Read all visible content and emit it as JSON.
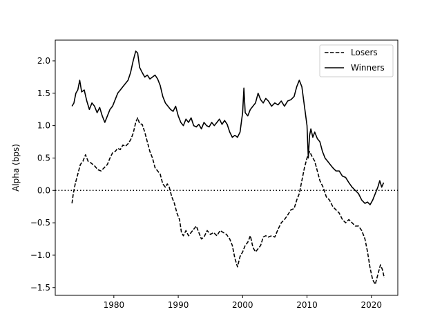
{
  "chart_data": {
    "type": "line",
    "title": "",
    "xlabel": "",
    "ylabel": "Alpha (bps)",
    "xlim": [
      1970.9,
      2024.1
    ],
    "ylim": [
      -1.62,
      2.32
    ],
    "xticks": [
      1980,
      1990,
      2000,
      2010,
      2020
    ],
    "yticks": [
      2.0,
      1.5,
      1.0,
      0.5,
      0.0,
      -0.5,
      -1.0,
      -1.5
    ],
    "ytick_labels": [
      "2.0",
      "1.5",
      "1.0",
      "0.5",
      "0.0",
      "−0.5",
      "−1.0",
      "−1.5"
    ],
    "reference_line": {
      "y": 0.0,
      "style": "dotted"
    },
    "grid": false,
    "legend_position": "top-right",
    "series": [
      {
        "name": "Losers",
        "style": "dashed",
        "color": "#000000",
        "points": [
          [
            1973.5,
            -0.2
          ],
          [
            1973.7,
            -0.05
          ],
          [
            1974.0,
            0.1
          ],
          [
            1974.4,
            0.25
          ],
          [
            1974.8,
            0.4
          ],
          [
            1975.2,
            0.45
          ],
          [
            1975.6,
            0.55
          ],
          [
            1976.0,
            0.45
          ],
          [
            1976.5,
            0.42
          ],
          [
            1977.0,
            0.38
          ],
          [
            1977.5,
            0.32
          ],
          [
            1978.0,
            0.3
          ],
          [
            1978.5,
            0.35
          ],
          [
            1979.0,
            0.4
          ],
          [
            1979.4,
            0.5
          ],
          [
            1979.8,
            0.58
          ],
          [
            1980.2,
            0.6
          ],
          [
            1980.6,
            0.65
          ],
          [
            1981.0,
            0.63
          ],
          [
            1981.4,
            0.7
          ],
          [
            1981.8,
            0.68
          ],
          [
            1982.2,
            0.72
          ],
          [
            1982.6,
            0.78
          ],
          [
            1983.0,
            0.88
          ],
          [
            1983.4,
            1.05
          ],
          [
            1983.7,
            1.12
          ],
          [
            1984.0,
            1.03
          ],
          [
            1984.4,
            1.02
          ],
          [
            1984.8,
            0.9
          ],
          [
            1985.2,
            0.75
          ],
          [
            1985.6,
            0.6
          ],
          [
            1986.0,
            0.5
          ],
          [
            1986.4,
            0.35
          ],
          [
            1986.8,
            0.3
          ],
          [
            1987.2,
            0.25
          ],
          [
            1987.6,
            0.1
          ],
          [
            1988.0,
            0.05
          ],
          [
            1988.3,
            0.1
          ],
          [
            1988.6,
            0.05
          ],
          [
            1989.0,
            -0.1
          ],
          [
            1989.4,
            -0.2
          ],
          [
            1989.8,
            -0.35
          ],
          [
            1990.2,
            -0.45
          ],
          [
            1990.5,
            -0.65
          ],
          [
            1990.8,
            -0.7
          ],
          [
            1991.2,
            -0.62
          ],
          [
            1991.6,
            -0.7
          ],
          [
            1992.0,
            -0.65
          ],
          [
            1992.4,
            -0.6
          ],
          [
            1992.8,
            -0.55
          ],
          [
            1993.2,
            -0.65
          ],
          [
            1993.6,
            -0.75
          ],
          [
            1994.0,
            -0.72
          ],
          [
            1994.5,
            -0.62
          ],
          [
            1995.0,
            -0.68
          ],
          [
            1995.5,
            -0.65
          ],
          [
            1996.0,
            -0.7
          ],
          [
            1996.5,
            -0.62
          ],
          [
            1997.0,
            -0.65
          ],
          [
            1997.5,
            -0.68
          ],
          [
            1998.0,
            -0.75
          ],
          [
            1998.4,
            -0.85
          ],
          [
            1998.8,
            -1.05
          ],
          [
            1999.2,
            -1.18
          ],
          [
            1999.6,
            -1.02
          ],
          [
            2000.0,
            -0.95
          ],
          [
            2000.4,
            -0.85
          ],
          [
            2000.8,
            -0.8
          ],
          [
            2001.2,
            -0.7
          ],
          [
            2001.6,
            -0.88
          ],
          [
            2002.0,
            -0.95
          ],
          [
            2002.4,
            -0.9
          ],
          [
            2002.8,
            -0.85
          ],
          [
            2003.2,
            -0.72
          ],
          [
            2003.6,
            -0.7
          ],
          [
            2004.0,
            -0.72
          ],
          [
            2004.5,
            -0.7
          ],
          [
            2005.0,
            -0.72
          ],
          [
            2005.5,
            -0.6
          ],
          [
            2006.0,
            -0.5
          ],
          [
            2006.5,
            -0.45
          ],
          [
            2007.0,
            -0.38
          ],
          [
            2007.5,
            -0.3
          ],
          [
            2008.0,
            -0.28
          ],
          [
            2008.4,
            -0.15
          ],
          [
            2008.8,
            -0.05
          ],
          [
            2009.2,
            0.15
          ],
          [
            2009.6,
            0.35
          ],
          [
            2010.0,
            0.5
          ],
          [
            2010.4,
            0.6
          ],
          [
            2010.8,
            0.52
          ],
          [
            2011.2,
            0.45
          ],
          [
            2011.6,
            0.3
          ],
          [
            2012.0,
            0.15
          ],
          [
            2012.5,
            0.05
          ],
          [
            2013.0,
            -0.1
          ],
          [
            2013.5,
            -0.15
          ],
          [
            2014.0,
            -0.25
          ],
          [
            2014.5,
            -0.3
          ],
          [
            2015.0,
            -0.35
          ],
          [
            2015.5,
            -0.45
          ],
          [
            2016.0,
            -0.5
          ],
          [
            2016.5,
            -0.45
          ],
          [
            2017.0,
            -0.5
          ],
          [
            2017.5,
            -0.55
          ],
          [
            2018.0,
            -0.55
          ],
          [
            2018.5,
            -0.62
          ],
          [
            2019.0,
            -0.75
          ],
          [
            2019.4,
            -0.95
          ],
          [
            2019.8,
            -1.2
          ],
          [
            2020.2,
            -1.38
          ],
          [
            2020.6,
            -1.45
          ],
          [
            2021.0,
            -1.3
          ],
          [
            2021.4,
            -1.15
          ],
          [
            2021.7,
            -1.22
          ],
          [
            2022.0,
            -1.35
          ]
        ]
      },
      {
        "name": "Winners",
        "style": "solid",
        "color": "#000000",
        "points": [
          [
            1973.5,
            1.3
          ],
          [
            1973.8,
            1.35
          ],
          [
            1974.1,
            1.5
          ],
          [
            1974.4,
            1.55
          ],
          [
            1974.7,
            1.7
          ],
          [
            1975.0,
            1.52
          ],
          [
            1975.4,
            1.55
          ],
          [
            1975.8,
            1.38
          ],
          [
            1976.2,
            1.25
          ],
          [
            1976.6,
            1.35
          ],
          [
            1977.0,
            1.3
          ],
          [
            1977.4,
            1.2
          ],
          [
            1977.8,
            1.28
          ],
          [
            1978.2,
            1.15
          ],
          [
            1978.6,
            1.05
          ],
          [
            1979.0,
            1.15
          ],
          [
            1979.4,
            1.25
          ],
          [
            1979.8,
            1.3
          ],
          [
            1980.2,
            1.4
          ],
          [
            1980.6,
            1.5
          ],
          [
            1981.0,
            1.55
          ],
          [
            1981.4,
            1.6
          ],
          [
            1981.8,
            1.65
          ],
          [
            1982.2,
            1.7
          ],
          [
            1982.6,
            1.82
          ],
          [
            1983.0,
            2.0
          ],
          [
            1983.4,
            2.15
          ],
          [
            1983.7,
            2.12
          ],
          [
            1984.0,
            1.9
          ],
          [
            1984.4,
            1.82
          ],
          [
            1984.8,
            1.75
          ],
          [
            1985.2,
            1.78
          ],
          [
            1985.6,
            1.72
          ],
          [
            1986.0,
            1.75
          ],
          [
            1986.4,
            1.78
          ],
          [
            1986.8,
            1.72
          ],
          [
            1987.2,
            1.62
          ],
          [
            1987.6,
            1.45
          ],
          [
            1988.0,
            1.35
          ],
          [
            1988.4,
            1.3
          ],
          [
            1988.8,
            1.25
          ],
          [
            1989.2,
            1.22
          ],
          [
            1989.6,
            1.3
          ],
          [
            1990.0,
            1.15
          ],
          [
            1990.4,
            1.05
          ],
          [
            1990.8,
            1.0
          ],
          [
            1991.2,
            1.1
          ],
          [
            1991.6,
            1.05
          ],
          [
            1992.0,
            1.12
          ],
          [
            1992.4,
            1.0
          ],
          [
            1992.8,
            0.98
          ],
          [
            1993.2,
            1.02
          ],
          [
            1993.6,
            0.95
          ],
          [
            1994.0,
            1.05
          ],
          [
            1994.4,
            1.0
          ],
          [
            1994.8,
            0.98
          ],
          [
            1995.2,
            1.05
          ],
          [
            1995.6,
            1.0
          ],
          [
            1996.0,
            1.05
          ],
          [
            1996.4,
            1.1
          ],
          [
            1996.8,
            1.02
          ],
          [
            1997.2,
            1.08
          ],
          [
            1997.6,
            1.02
          ],
          [
            1998.0,
            0.9
          ],
          [
            1998.4,
            0.82
          ],
          [
            1998.8,
            0.85
          ],
          [
            1999.2,
            0.82
          ],
          [
            1999.6,
            0.9
          ],
          [
            2000.0,
            1.2
          ],
          [
            2000.2,
            1.58
          ],
          [
            2000.4,
            1.2
          ],
          [
            2000.8,
            1.15
          ],
          [
            2001.2,
            1.25
          ],
          [
            2001.6,
            1.3
          ],
          [
            2002.0,
            1.35
          ],
          [
            2002.4,
            1.5
          ],
          [
            2002.8,
            1.4
          ],
          [
            2003.2,
            1.35
          ],
          [
            2003.6,
            1.42
          ],
          [
            2004.0,
            1.38
          ],
          [
            2004.5,
            1.3
          ],
          [
            2005.0,
            1.35
          ],
          [
            2005.5,
            1.32
          ],
          [
            2006.0,
            1.38
          ],
          [
            2006.5,
            1.3
          ],
          [
            2007.0,
            1.38
          ],
          [
            2007.5,
            1.4
          ],
          [
            2008.0,
            1.45
          ],
          [
            2008.4,
            1.6
          ],
          [
            2008.8,
            1.7
          ],
          [
            2009.2,
            1.6
          ],
          [
            2009.6,
            1.3
          ],
          [
            2010.0,
            1.0
          ],
          [
            2010.2,
            0.5
          ],
          [
            2010.4,
            0.85
          ],
          [
            2010.6,
            0.95
          ],
          [
            2010.9,
            0.82
          ],
          [
            2011.2,
            0.9
          ],
          [
            2011.6,
            0.8
          ],
          [
            2012.0,
            0.75
          ],
          [
            2012.4,
            0.6
          ],
          [
            2012.8,
            0.5
          ],
          [
            2013.2,
            0.45
          ],
          [
            2013.6,
            0.4
          ],
          [
            2014.0,
            0.35
          ],
          [
            2014.5,
            0.3
          ],
          [
            2015.0,
            0.3
          ],
          [
            2015.5,
            0.22
          ],
          [
            2016.0,
            0.2
          ],
          [
            2016.5,
            0.12
          ],
          [
            2017.0,
            0.05
          ],
          [
            2017.5,
            0.0
          ],
          [
            2018.0,
            -0.05
          ],
          [
            2018.5,
            -0.15
          ],
          [
            2019.0,
            -0.2
          ],
          [
            2019.4,
            -0.18
          ],
          [
            2019.8,
            -0.22
          ],
          [
            2020.2,
            -0.15
          ],
          [
            2020.6,
            -0.05
          ],
          [
            2021.0,
            0.05
          ],
          [
            2021.3,
            0.15
          ],
          [
            2021.6,
            0.05
          ],
          [
            2021.9,
            0.12
          ]
        ]
      }
    ]
  }
}
